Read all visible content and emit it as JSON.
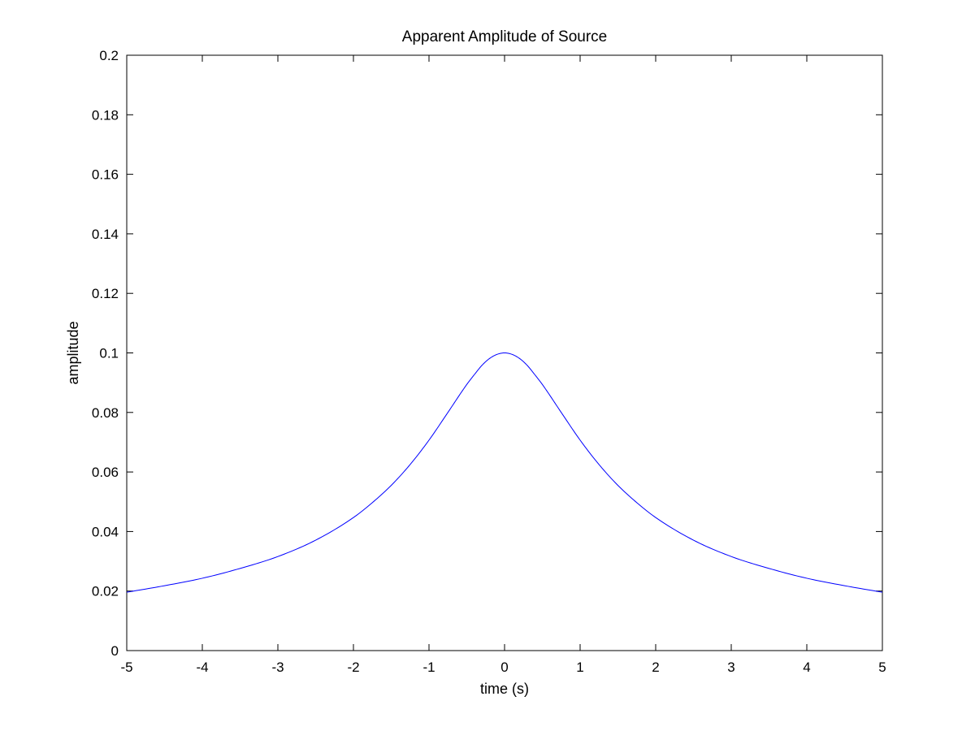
{
  "chart_data": {
    "type": "line",
    "title": "Apparent Amplitude of Source",
    "xlabel": "time (s)",
    "ylabel": "amplitude",
    "xlim": [
      -5,
      5
    ],
    "ylim": [
      0,
      0.2
    ],
    "xticks": [
      "-5",
      "-4",
      "-3",
      "-2",
      "-1",
      "0",
      "1",
      "2",
      "3",
      "4",
      "5"
    ],
    "yticks": [
      "0",
      "0.02",
      "0.04",
      "0.06",
      "0.08",
      "0.1",
      "0.12",
      "0.14",
      "0.16",
      "0.18",
      "0.2"
    ],
    "grid": false,
    "legend": "none",
    "line_color": "#0000ff",
    "axis_color": "#000000",
    "series": [
      {
        "x": [
          -5,
          -4.5,
          -4,
          -3.5,
          -3,
          -2.5,
          -2,
          -1.75,
          -1.5,
          -1.25,
          -1,
          -0.75,
          -0.5,
          -0.4,
          -0.3,
          -0.2,
          -0.1,
          0,
          0.1,
          0.2,
          0.3,
          0.4,
          0.5,
          0.75,
          1,
          1.25,
          1.5,
          1.75,
          2,
          2.5,
          3,
          3.5,
          4,
          4.5,
          5
        ],
        "y": [
          0.0196,
          0.0218,
          0.0243,
          0.0276,
          0.0316,
          0.0371,
          0.0447,
          0.0497,
          0.0555,
          0.0625,
          0.0707,
          0.08,
          0.0894,
          0.0927,
          0.0958,
          0.0981,
          0.0995,
          0.1,
          0.0995,
          0.0981,
          0.0958,
          0.0927,
          0.0894,
          0.08,
          0.0707,
          0.0625,
          0.0555,
          0.0497,
          0.0447,
          0.0371,
          0.0316,
          0.0276,
          0.0243,
          0.0218,
          0.0196
        ]
      }
    ]
  }
}
